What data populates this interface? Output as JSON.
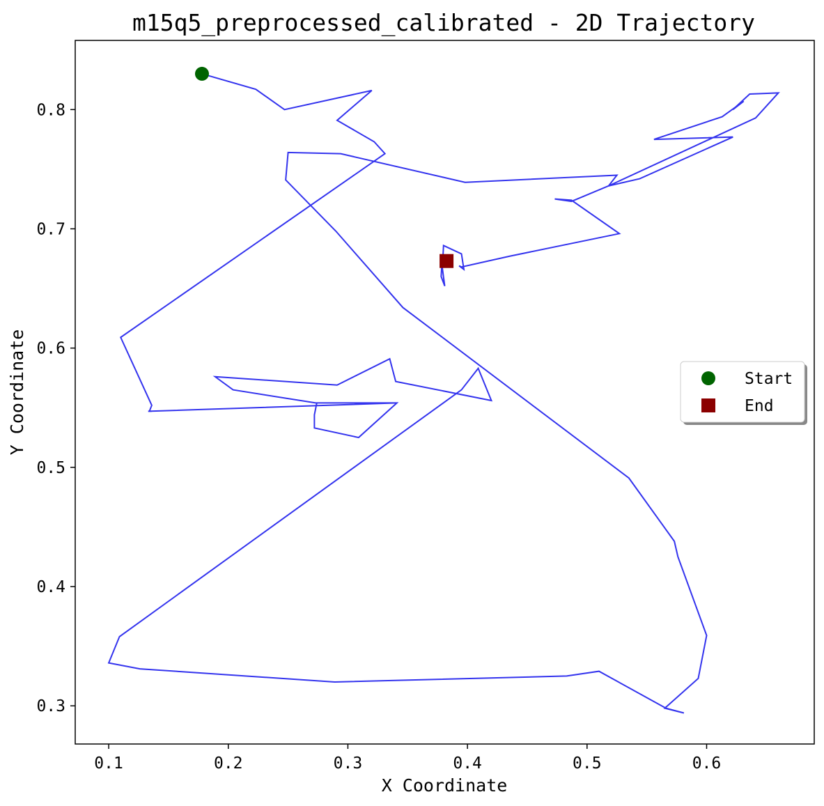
{
  "chart_data": {
    "type": "line",
    "title": "m15q5_preprocessed_calibrated - 2D Trajectory",
    "xlabel": "X Coordinate",
    "ylabel": "Y Coordinate",
    "xlim": [
      0.072,
      0.69
    ],
    "ylim": [
      0.268,
      0.858
    ],
    "xticks": [
      0.1,
      0.2,
      0.3,
      0.4,
      0.5,
      0.6
    ],
    "yticks": [
      0.3,
      0.4,
      0.5,
      0.6,
      0.7,
      0.8
    ],
    "xtick_labels": [
      "0.1",
      "0.2",
      "0.3",
      "0.4",
      "0.5",
      "0.6"
    ],
    "ytick_labels": [
      "0.3",
      "0.4",
      "0.5",
      "0.6",
      "0.7",
      "0.8"
    ],
    "grid": false,
    "legend_position": "right",
    "series": [
      {
        "color": "#3333ee",
        "x": [
          0.178,
          0.223,
          0.247,
          0.32,
          0.291,
          0.322,
          0.331,
          0.11,
          0.136,
          0.134,
          0.136,
          0.133,
          0.341,
          0.274,
          0.272,
          0.272,
          0.309,
          0.341,
          0.273,
          0.204,
          0.189,
          0.291,
          0.335,
          0.34,
          0.42,
          0.409,
          0.395,
          0.109,
          0.1,
          0.126,
          0.289,
          0.483,
          0.51,
          0.566,
          0.581,
          0.565,
          0.593,
          0.6,
          0.576,
          0.573,
          0.535,
          0.346,
          0.29,
          0.248,
          0.25,
          0.294,
          0.398,
          0.525,
          0.518,
          0.641,
          0.66,
          0.636,
          0.622,
          0.631,
          0.613,
          0.556,
          0.622,
          0.544,
          0.518,
          0.487,
          0.473,
          0.487,
          0.527,
          0.435,
          0.395,
          0.393,
          0.397,
          0.395,
          0.38,
          0.379,
          0.381,
          0.378,
          0.379,
          0.382
        ],
        "y": [
          0.83,
          0.817,
          0.8,
          0.816,
          0.791,
          0.773,
          0.763,
          0.609,
          0.552,
          0.547,
          0.547,
          0.547,
          0.554,
          0.554,
          0.544,
          0.533,
          0.525,
          0.554,
          0.554,
          0.565,
          0.576,
          0.569,
          0.591,
          0.572,
          0.556,
          0.583,
          0.565,
          0.358,
          0.336,
          0.331,
          0.32,
          0.325,
          0.329,
          0.298,
          0.294,
          0.298,
          0.323,
          0.359,
          0.425,
          0.438,
          0.491,
          0.634,
          0.698,
          0.741,
          0.764,
          0.763,
          0.739,
          0.745,
          0.736,
          0.793,
          0.814,
          0.813,
          0.8,
          0.807,
          0.794,
          0.775,
          0.777,
          0.742,
          0.736,
          0.723,
          0.725,
          0.724,
          0.696,
          0.677,
          0.668,
          0.669,
          0.666,
          0.679,
          0.686,
          0.667,
          0.652,
          0.66,
          0.677,
          0.673
        ]
      }
    ],
    "markers": [
      {
        "label": "Start",
        "shape": "circle",
        "color": "#006400",
        "x": 0.178,
        "y": 0.83
      },
      {
        "label": "End",
        "shape": "square",
        "color": "#8b0000",
        "x": 0.3825,
        "y": 0.673
      }
    ]
  }
}
